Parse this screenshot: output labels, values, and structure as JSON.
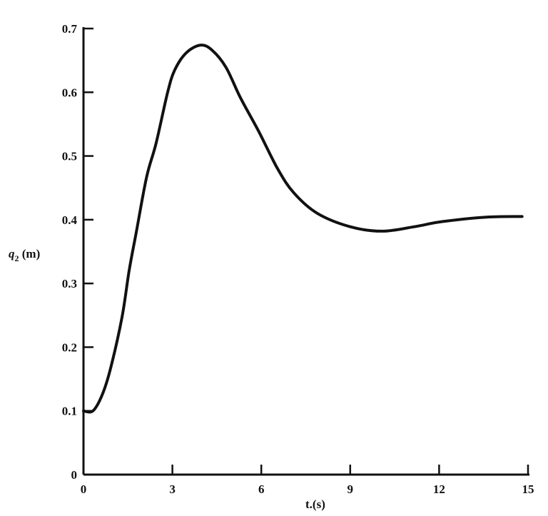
{
  "chart_data": {
    "type": "line",
    "title": "",
    "xlabel": "t.(s)",
    "ylabel": "q2 (m)",
    "ylabel_main": "q",
    "ylabel_sub": "2",
    "ylabel_unit": " (m)",
    "xlim": [
      0,
      15
    ],
    "ylim": [
      0,
      0.7
    ],
    "grid": false,
    "x_ticks": [
      "0",
      "3",
      "6",
      "9",
      "12",
      "15"
    ],
    "y_ticks": [
      "0",
      "0.1",
      "0.2",
      "0.3",
      "0.4",
      "0.5",
      "0.6",
      "0.7"
    ],
    "line_color": "#111111",
    "series": [
      {
        "x": [
          0,
          0.32,
          0.63,
          0.91,
          1.3,
          1.54,
          1.78,
          2.13,
          2.45,
          2.84,
          3.08,
          3.47,
          3.95,
          4.34,
          4.81,
          5.29,
          5.92,
          6.55,
          7.1,
          7.89,
          9.0,
          10.07,
          11.16,
          12.1,
          13.6,
          14.8
        ],
        "y": [
          0.1,
          0.1,
          0.125,
          0.166,
          0.247,
          0.32,
          0.38,
          0.467,
          0.52,
          0.6,
          0.635,
          0.662,
          0.674,
          0.666,
          0.639,
          0.592,
          0.538,
          0.48,
          0.442,
          0.41,
          0.389,
          0.382,
          0.389,
          0.397,
          0.404,
          0.405
        ]
      }
    ]
  }
}
